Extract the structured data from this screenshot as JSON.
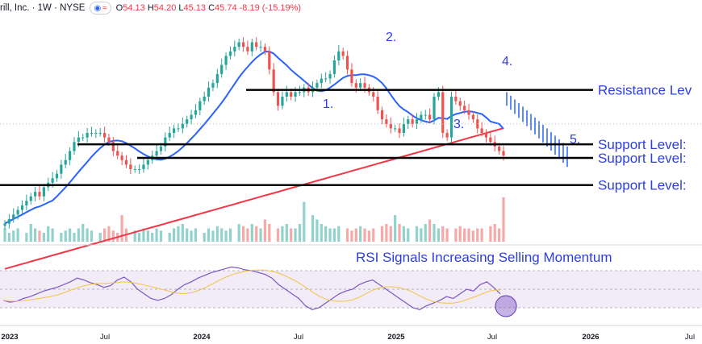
{
  "header": {
    "symbol": "rill, Inc. · 1W · NYSE",
    "open_label": "O",
    "open": "54.13",
    "high_label": "H",
    "high": "54.20",
    "low_label": "L",
    "low": "45.13",
    "close_label": "C",
    "close": "45.74",
    "change": "-8.19 (-15.19%)",
    "icons": [
      "eye-icon",
      "wave-icon"
    ]
  },
  "annotations": {
    "resistance": "Resistance Lev",
    "support_1": "Support Level:",
    "support_2": "Support Level:",
    "support_3": "Support Level:",
    "rsi_title": "RSI Signals Increasing Selling Momentum",
    "points": [
      "1.",
      "2.",
      "3.",
      "4.",
      "5."
    ]
  },
  "x_axis_labels": [
    "2023",
    "Jul",
    "2024",
    "Jul",
    "2025",
    "Jul",
    "2026",
    "Jul"
  ],
  "colors": {
    "up": "#26a69a",
    "down": "#ef5350",
    "ma50": "#2962ff",
    "ma200": "#f23645",
    "rsi": "#7e57c2",
    "rsi_ma": "#f5c242",
    "annotation": "#2d3ee0",
    "level_line": "#000000"
  },
  "chart_data": {
    "type": "candlestick",
    "interval": "1W",
    "exchange": "NYSE",
    "last_bar": {
      "open": 54.13,
      "high": 54.2,
      "low": 45.13,
      "close": 45.74,
      "change": -8.19,
      "change_pct": -15.19
    },
    "resistance_level": 63.5,
    "support_levels": [
      51.5,
      48.5,
      42.5
    ],
    "weekly_closes_approx": [
      34,
      35,
      36,
      37,
      38,
      39,
      40,
      41,
      40,
      42,
      43,
      44,
      45,
      47,
      48,
      50,
      52,
      53,
      53,
      54,
      54,
      54,
      54,
      53,
      52,
      50,
      49,
      48,
      47,
      46,
      46,
      46,
      47,
      48,
      49,
      50,
      51,
      53,
      54,
      55,
      55,
      56,
      57,
      58,
      59,
      61,
      62,
      64,
      65,
      67,
      69,
      71,
      72,
      73,
      74,
      73,
      72,
      74,
      73,
      73,
      72,
      68,
      63,
      60,
      62,
      63,
      62,
      63,
      63,
      64,
      63,
      64,
      65,
      66,
      66,
      67,
      70,
      72,
      71,
      68,
      65,
      64,
      65,
      64,
      63,
      62,
      59,
      57,
      56,
      55,
      55,
      54,
      56,
      57,
      56,
      57,
      58,
      58,
      57,
      62,
      63,
      54,
      53,
      62,
      61,
      60,
      59,
      58,
      57,
      55,
      54,
      53,
      52,
      51,
      50,
      49
    ],
    "volume_relative": [
      0.3,
      0.2,
      0.25,
      0.3,
      0.2,
      0.4,
      0.3,
      0.25,
      0.2,
      0.35,
      0.3,
      0.2,
      0.25,
      0.3,
      0.2,
      0.3,
      0.4,
      0.3,
      0.25,
      0.2,
      0.3,
      0.35,
      0.25,
      0.2,
      0.6,
      0.3,
      0.25,
      0.2,
      0.3,
      0.25,
      0.2,
      0.3,
      0.25,
      0.2,
      0.3,
      0.35,
      0.4,
      0.3,
      0.25,
      0.3,
      0.2,
      0.3,
      0.25,
      0.35,
      0.3,
      0.25,
      0.3,
      0.4,
      0.35,
      0.3,
      0.4,
      0.35,
      0.3,
      0.5,
      0.4,
      0.3,
      0.35,
      0.4,
      0.3,
      0.3,
      0.4,
      0.9,
      0.6,
      0.5,
      0.4,
      0.35,
      0.3,
      0.3,
      0.35,
      0.3,
      0.25,
      0.3,
      0.35,
      0.3,
      0.25,
      0.3,
      0.35,
      0.4,
      0.35,
      0.6,
      0.4,
      0.35,
      0.3,
      0.35,
      0.3,
      0.4,
      0.5,
      0.4,
      0.3,
      0.35,
      0.3,
      0.3,
      0.35,
      0.3,
      0.3,
      0.25,
      0.3,
      0.3,
      0.35,
      0.4,
      0.3,
      1.0
    ],
    "rsi": {
      "overbought": 70,
      "oversold": 30,
      "mid": 50,
      "values_approx": [
        38,
        36,
        37,
        40,
        42,
        45,
        48,
        50,
        52,
        55,
        58,
        62,
        60,
        57,
        55,
        52,
        54,
        60,
        63,
        58,
        50,
        45,
        40,
        38,
        40,
        44,
        50,
        55,
        58,
        62,
        65,
        68,
        70,
        72,
        74,
        73,
        71,
        70,
        68,
        66,
        62,
        55,
        50,
        45,
        40,
        32,
        28,
        30,
        35,
        40,
        45,
        48,
        50,
        55,
        58,
        60,
        55,
        50,
        45,
        40,
        35,
        30,
        28,
        32,
        35,
        38,
        42,
        40,
        45,
        50,
        48,
        55,
        58,
        52,
        45
      ]
    }
  }
}
